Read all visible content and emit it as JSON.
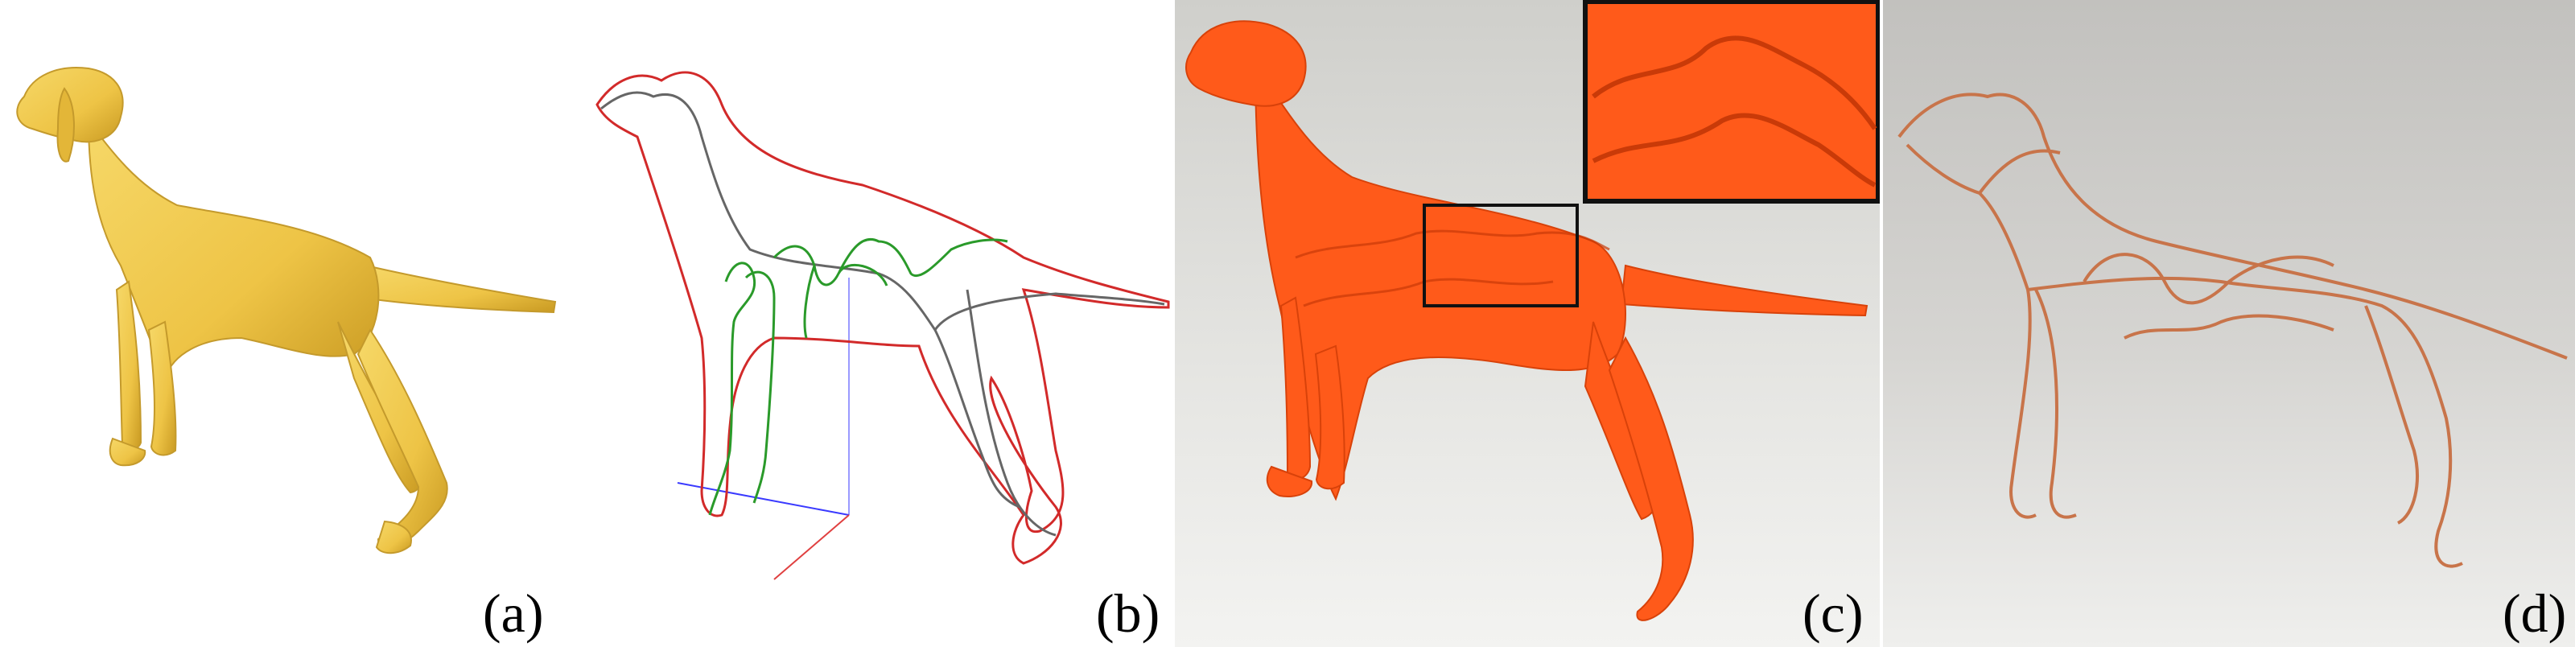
{
  "figure": {
    "panels": [
      {
        "id": "a",
        "label": "(a)"
      },
      {
        "id": "b",
        "label": "(b)"
      },
      {
        "id": "c",
        "label": "(c)"
      },
      {
        "id": "d",
        "label": "(d)"
      }
    ]
  },
  "colors": {
    "mesh_yellow": "#f2cc50",
    "curve_red": "#d22a2a",
    "curve_gray": "#666666",
    "curve_green": "#2a9a2a",
    "axis_blue": "#3a3aff",
    "axis_red": "#e04040",
    "print_orange": "#ff5a1a",
    "wire_copper": "#c8744a"
  }
}
